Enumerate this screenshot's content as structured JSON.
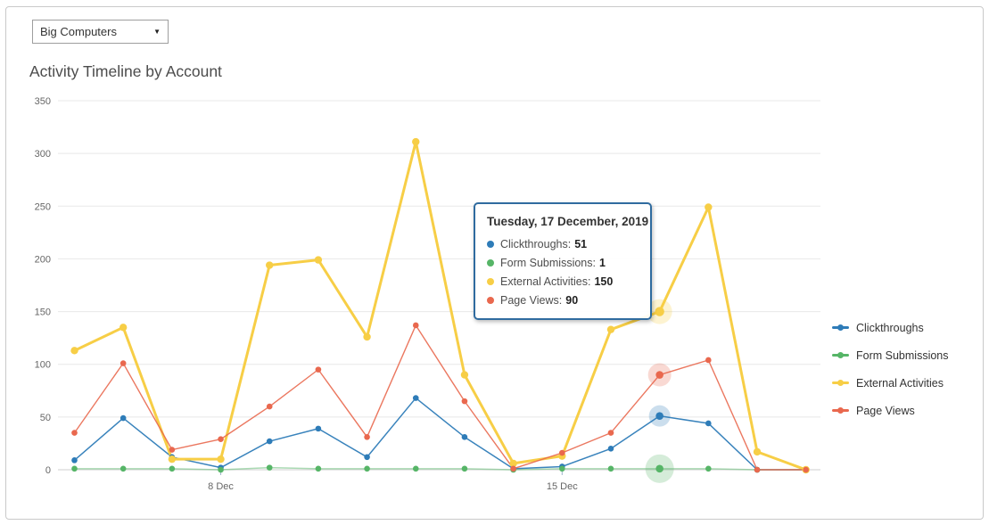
{
  "account_selector": {
    "value": "Big Computers",
    "caret": "▼"
  },
  "title": "Activity Timeline by Account",
  "tooltip": {
    "title": "Tuesday, 17 December, 2019",
    "items": [
      {
        "label": "Clickthroughs:",
        "value": "51",
        "color": "#2E7CB8"
      },
      {
        "label": "Form Submissions:",
        "value": "1",
        "color": "#56B567"
      },
      {
        "label": "External Activities:",
        "value": "150",
        "color": "#F7CE46"
      },
      {
        "label": "Page Views:",
        "value": "90",
        "color": "#E9684E"
      }
    ]
  },
  "chart_data": {
    "type": "line",
    "title": "Activity Timeline by Account",
    "categories": [
      "5 Dec",
      "6 Dec",
      "7 Dec",
      "8 Dec",
      "9 Dec",
      "10 Dec",
      "11 Dec",
      "12 Dec",
      "13 Dec",
      "14 Dec",
      "15 Dec",
      "16 Dec",
      "17 Dec",
      "18 Dec",
      "19 Dec",
      "20 Dec"
    ],
    "series": [
      {
        "name": "Clickthroughs",
        "color": "#2E7CB8",
        "values": [
          9,
          49,
          12,
          2,
          27,
          39,
          12,
          68,
          31,
          1,
          3,
          20,
          51,
          44,
          0,
          0
        ]
      },
      {
        "name": "Form Submissions",
        "color": "#56B567",
        "values": [
          1,
          1,
          1,
          0,
          2,
          1,
          1,
          1,
          1,
          0,
          1,
          1,
          1,
          1,
          0,
          0
        ]
      },
      {
        "name": "External Activities",
        "color": "#F7CE46",
        "values": [
          113,
          135,
          10,
          10,
          194,
          199,
          126,
          311,
          90,
          6,
          13,
          133,
          150,
          249,
          17,
          0
        ]
      },
      {
        "name": "Page Views",
        "color": "#E9684E",
        "values": [
          35,
          101,
          19,
          29,
          60,
          95,
          31,
          137,
          65,
          1,
          16,
          35,
          90,
          104,
          0,
          0
        ]
      }
    ],
    "highlight_index": 12,
    "highlight_date": "Tuesday, 17 December, 2019",
    "x_tick_labels": [
      {
        "index": 3,
        "label": "8 Dec"
      },
      {
        "index": 10,
        "label": "15 Dec"
      }
    ],
    "y_ticks": [
      0,
      50,
      100,
      150,
      200,
      250,
      300,
      350
    ],
    "ylim": [
      0,
      350
    ],
    "xlabel": "",
    "ylabel": "",
    "grid": "horizontal",
    "legend_position": "right"
  }
}
